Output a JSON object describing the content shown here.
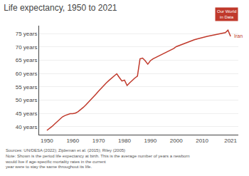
{
  "chart_data": {
    "type": "line",
    "title": "Life expectancy, 1950 to 2021",
    "x": [
      1950,
      1951,
      1952,
      1953,
      1954,
      1955,
      1956,
      1957,
      1958,
      1959,
      1960,
      1961,
      1962,
      1963,
      1964,
      1965,
      1966,
      1967,
      1968,
      1969,
      1970,
      1971,
      1972,
      1973,
      1974,
      1975,
      1976,
      1977,
      1978,
      1979,
      1980,
      1981,
      1982,
      1983,
      1984,
      1985,
      1986,
      1987,
      1988,
      1989,
      1990,
      1991,
      1992,
      1993,
      1994,
      1995,
      1996,
      1997,
      1998,
      1999,
      2000,
      2001,
      2002,
      2003,
      2004,
      2005,
      2006,
      2007,
      2008,
      2009,
      2010,
      2011,
      2012,
      2013,
      2014,
      2015,
      2016,
      2017,
      2018,
      2019,
      2020,
      2021
    ],
    "values": [
      38.6,
      39.3,
      40.1,
      41.0,
      41.9,
      42.8,
      43.7,
      44.2,
      44.6,
      44.9,
      44.9,
      45.1,
      45.6,
      46.3,
      47.2,
      48.1,
      49.1,
      50.1,
      51.2,
      52.3,
      53.4,
      54.5,
      55.5,
      56.5,
      57.4,
      58.3,
      59.1,
      59.9,
      58.5,
      57.2,
      57.5,
      55.5,
      56.5,
      57.5,
      58.3,
      59.0,
      65.5,
      65.8,
      64.8,
      63.5,
      64.8,
      65.5,
      66.0,
      66.5,
      66.9,
      67.3,
      67.9,
      68.4,
      68.9,
      69.4,
      70.1,
      70.5,
      70.9,
      71.3,
      71.6,
      71.9,
      72.3,
      72.7,
      73.0,
      73.3,
      73.5,
      73.8,
      74.0,
      74.2,
      74.4,
      74.6,
      74.8,
      75.0,
      75.2,
      75.4,
      76.3,
      74.0
    ],
    "color": "#c0392b",
    "annotations": [
      "Iran"
    ],
    "badge": "Our World\nin Data",
    "footnotes": [
      "Sources: UN/DESA (2022); Zijdeman et al. (2015); Riley (2005)",
      "Note: Shown is the period life expectancy at birth. This is the average number of years a newborn would live if age-specific mortality rates in the current",
      "year were to stay the same throughout its life."
    ],
    "xlim": [
      1947,
      2024
    ],
    "xticks": [
      1950,
      1960,
      1970,
      1980,
      1990,
      2000,
      2010,
      2021
    ],
    "ylim": [
      37,
      78
    ],
    "yticks": [
      {
        "value": 40,
        "label": "40 years"
      },
      {
        "value": 45,
        "label": "45 years"
      },
      {
        "value": 50,
        "label": "50 years"
      },
      {
        "value": 55,
        "label": "55 years"
      },
      {
        "value": 60,
        "label": "60 years"
      },
      {
        "value": 65,
        "label": "65 years"
      },
      {
        "value": 70,
        "label": "70 years"
      },
      {
        "value": 75,
        "label": "75 years"
      }
    ],
    "grid": "y"
  }
}
